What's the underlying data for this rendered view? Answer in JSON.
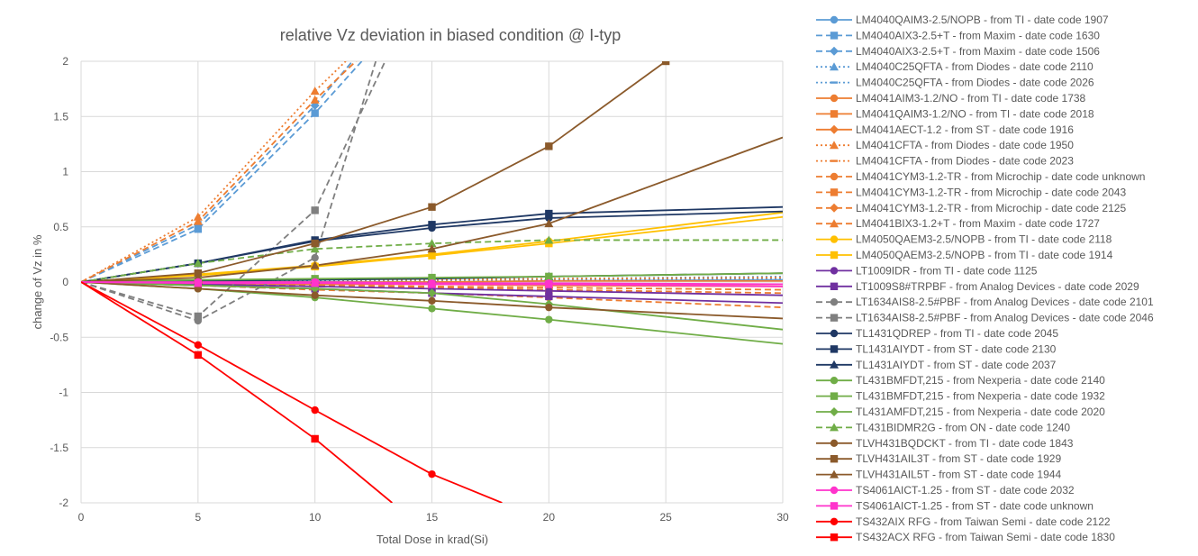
{
  "chart_data": {
    "type": "line",
    "title": "relative Vz deviation in biased condition @ I-typ",
    "xlabel": "Total Dose in krad(Si)",
    "ylabel": "change of Vz in %",
    "xlim": [
      0,
      30
    ],
    "ylim": [
      -2,
      2
    ],
    "x_ticks": [
      "0",
      "5",
      "10",
      "15",
      "20",
      "25",
      "30"
    ],
    "y_ticks": [
      "2",
      "1.5",
      "1",
      "0.5",
      "0",
      "-0.5",
      "-1",
      "-1.5",
      "-2"
    ],
    "grid": true,
    "legend_position": "right",
    "series": [
      {
        "name": "LM4040QAIM3-2.5/NOPB - from TI - date code 1907",
        "color": "#5B9BD5",
        "dash": "solid",
        "marker": "circle",
        "points": [
          [
            0,
            0
          ],
          [
            5,
            0
          ],
          [
            10,
            0
          ],
          [
            15,
            0
          ],
          [
            20,
            0.01
          ],
          [
            30,
            0.02
          ]
        ]
      },
      {
        "name": "LM4040AIX3-2.5+T - from Maxim - date code 1630",
        "color": "#5B9BD5",
        "dash": "dash",
        "marker": "square",
        "points": [
          [
            0,
            0
          ],
          [
            5,
            0.48
          ],
          [
            10,
            1.53
          ],
          [
            12,
            2.0
          ]
        ]
      },
      {
        "name": "LM4040AIX3-2.5+T - from Maxim - date code 1506",
        "color": "#5B9BD5",
        "dash": "dash",
        "marker": "diamond",
        "points": [
          [
            0,
            0
          ],
          [
            5,
            0.52
          ],
          [
            10,
            1.6
          ],
          [
            12,
            2.1
          ]
        ]
      },
      {
        "name": "LM4040C25QFTA - from Diodes - date code 2110",
        "color": "#5B9BD5",
        "dash": "dot",
        "marker": "triangle",
        "points": [
          [
            0,
            0
          ],
          [
            5,
            0.01
          ],
          [
            10,
            0.02
          ],
          [
            15,
            0.02
          ],
          [
            20,
            0.03
          ],
          [
            30,
            0.05
          ]
        ]
      },
      {
        "name": "LM4040C25QFTA - from Diodes - date code 2026",
        "color": "#5B9BD5",
        "dash": "dot",
        "marker": "dash",
        "points": [
          [
            0,
            0
          ],
          [
            5,
            0
          ],
          [
            10,
            0.01
          ],
          [
            15,
            0.01
          ],
          [
            20,
            0.02
          ],
          [
            30,
            0.03
          ]
        ]
      },
      {
        "name": "LM4041AIM3-1.2/NO - from TI - date code 1738",
        "color": "#ED7D31",
        "dash": "solid",
        "marker": "circle",
        "points": [
          [
            0,
            0
          ],
          [
            5,
            -0.01
          ],
          [
            10,
            -0.02
          ],
          [
            15,
            -0.02
          ],
          [
            20,
            -0.03
          ],
          [
            30,
            -0.04
          ]
        ]
      },
      {
        "name": "LM4041QAIM3-1.2/NO - from TI - date code 2018",
        "color": "#ED7D31",
        "dash": "solid",
        "marker": "square",
        "points": [
          [
            0,
            0
          ],
          [
            5,
            -0.01
          ],
          [
            10,
            -0.01
          ],
          [
            15,
            -0.01
          ],
          [
            20,
            -0.02
          ],
          [
            30,
            -0.02
          ]
        ]
      },
      {
        "name": "LM4041AECT-1.2 - from ST - date code 1916",
        "color": "#ED7D31",
        "dash": "solid",
        "marker": "diamond",
        "points": [
          [
            0,
            0
          ],
          [
            5,
            0
          ],
          [
            10,
            0
          ],
          [
            15,
            0
          ],
          [
            20,
            0.01
          ],
          [
            30,
            0.01
          ]
        ]
      },
      {
        "name": "LM4041CFTA - from Diodes - date code 1950",
        "color": "#ED7D31",
        "dash": "dot",
        "marker": "triangle",
        "points": [
          [
            0,
            0
          ],
          [
            5,
            0.59
          ],
          [
            10,
            1.73
          ],
          [
            11.8,
            2.1
          ]
        ]
      },
      {
        "name": "LM4041CFTA - from Diodes - date code 2023",
        "color": "#ED7D31",
        "dash": "dot",
        "marker": "dash",
        "points": [
          [
            0,
            0
          ],
          [
            5,
            0.01
          ],
          [
            10,
            0.02
          ],
          [
            15,
            0.02
          ],
          [
            20,
            0.03
          ],
          [
            30,
            0.04
          ]
        ]
      },
      {
        "name": "LM4041CYM3-1.2-TR - from Microchip - date code unknown",
        "color": "#ED7D31",
        "dash": "dash",
        "marker": "circle",
        "points": [
          [
            0,
            0
          ],
          [
            5,
            -0.03
          ],
          [
            10,
            -0.07
          ],
          [
            15,
            -0.1
          ],
          [
            20,
            -0.14
          ],
          [
            30,
            -0.23
          ]
        ]
      },
      {
        "name": "LM4041CYM3-1.2-TR - from Microchip - date code 2043",
        "color": "#ED7D31",
        "dash": "dash",
        "marker": "square",
        "points": [
          [
            0,
            0
          ],
          [
            5,
            -0.02
          ],
          [
            10,
            -0.04
          ],
          [
            15,
            -0.05
          ],
          [
            20,
            -0.07
          ],
          [
            30,
            -0.1
          ]
        ]
      },
      {
        "name": "LM4041CYM3-1.2-TR - from Microchip - date code 2125",
        "color": "#ED7D31",
        "dash": "dash",
        "marker": "diamond",
        "points": [
          [
            0,
            0
          ],
          [
            5,
            -0.01
          ],
          [
            10,
            -0.03
          ],
          [
            15,
            -0.04
          ],
          [
            20,
            -0.05
          ],
          [
            30,
            -0.07
          ]
        ]
      },
      {
        "name": "LM4041BIX3-1.2+T - from Maxim - date code 1727",
        "color": "#ED7D31",
        "dash": "dash",
        "marker": "triangle",
        "points": [
          [
            0,
            0
          ],
          [
            5,
            0.55
          ],
          [
            10,
            1.65
          ],
          [
            12,
            2.05
          ]
        ]
      },
      {
        "name": "LM4050QAEM3-2.5/NOPB - from TI - date code 2118",
        "color": "#FFC000",
        "dash": "solid",
        "marker": "circle",
        "points": [
          [
            0,
            0
          ],
          [
            5,
            0.07
          ],
          [
            10,
            0.15
          ],
          [
            15,
            0.25
          ],
          [
            20,
            0.37
          ],
          [
            30,
            0.63
          ]
        ]
      },
      {
        "name": "LM4050QAEM3-2.5/NOPB - from TI - date code 1914",
        "color": "#FFC000",
        "dash": "solid",
        "marker": "square",
        "points": [
          [
            0,
            0
          ],
          [
            5,
            0.06
          ],
          [
            10,
            0.14
          ],
          [
            15,
            0.24
          ],
          [
            20,
            0.35
          ],
          [
            30,
            0.59
          ]
        ]
      },
      {
        "name": "LT1009IDR - from TI - date code 1125",
        "color": "#7030A0",
        "dash": "solid",
        "marker": "circle",
        "points": [
          [
            0,
            0
          ],
          [
            5,
            -0.02
          ],
          [
            10,
            -0.04
          ],
          [
            15,
            -0.06
          ],
          [
            20,
            -0.08
          ],
          [
            30,
            -0.12
          ]
        ]
      },
      {
        "name": "LT1009S8#TRPBF - from Analog Devices - date code 2029",
        "color": "#7030A0",
        "dash": "solid",
        "marker": "square",
        "points": [
          [
            0,
            0
          ],
          [
            5,
            -0.03
          ],
          [
            10,
            -0.06
          ],
          [
            15,
            -0.1
          ],
          [
            20,
            -0.13
          ],
          [
            30,
            -0.19
          ]
        ]
      },
      {
        "name": "LT1634AIS8-2.5#PBF - from Analog Devices - date code 2101",
        "color": "#7F7F7F",
        "dash": "dash",
        "marker": "circle",
        "points": [
          [
            0,
            0
          ],
          [
            5,
            -0.35
          ],
          [
            10,
            0.22
          ],
          [
            12.6,
            2.0
          ]
        ]
      },
      {
        "name": "LT1634AIS8-2.5#PBF - from Analog Devices - date code 2046",
        "color": "#7F7F7F",
        "dash": "dash",
        "marker": "square",
        "points": [
          [
            0,
            0
          ],
          [
            5,
            -0.31
          ],
          [
            10,
            0.65
          ],
          [
            13,
            2.0
          ]
        ]
      },
      {
        "name": "TL1431QDREP - from TI - date code 2045",
        "color": "#1F3864",
        "dash": "solid",
        "marker": "circle",
        "points": [
          [
            0,
            0
          ],
          [
            5,
            0.17
          ],
          [
            10,
            0.37
          ],
          [
            15,
            0.49
          ],
          [
            20,
            0.58
          ],
          [
            30,
            0.64
          ]
        ]
      },
      {
        "name": "TL1431AIYDT - from ST - date code 2130",
        "color": "#1F3864",
        "dash": "solid",
        "marker": "square",
        "points": [
          [
            0,
            0
          ],
          [
            5,
            0.17
          ],
          [
            10,
            0.38
          ],
          [
            15,
            0.52
          ],
          [
            20,
            0.62
          ],
          [
            30,
            0.68
          ]
        ]
      },
      {
        "name": "TL1431AIYDT - from ST - date code 2037",
        "color": "#1F3864",
        "dash": "solid",
        "marker": "triangle",
        "points": [
          [
            0,
            0
          ],
          [
            5,
            0.01
          ],
          [
            10,
            0.02
          ],
          [
            15,
            0.03
          ],
          [
            20,
            0.05
          ],
          [
            30,
            0.08
          ]
        ]
      },
      {
        "name": "TL431BMFDT,215 - from Nexperia - date code 2140",
        "color": "#70AD47",
        "dash": "solid",
        "marker": "circle",
        "points": [
          [
            0,
            0
          ],
          [
            5,
            -0.06
          ],
          [
            10,
            -0.14
          ],
          [
            15,
            -0.24
          ],
          [
            20,
            -0.34
          ],
          [
            30,
            -0.56
          ]
        ]
      },
      {
        "name": "TL431BMFDT,215 - from Nexperia - date code 1932",
        "color": "#70AD47",
        "dash": "solid",
        "marker": "square",
        "points": [
          [
            0,
            0
          ],
          [
            5,
            0.02
          ],
          [
            10,
            0.03
          ],
          [
            15,
            0.04
          ],
          [
            20,
            0.05
          ],
          [
            30,
            0.08
          ]
        ]
      },
      {
        "name": "TL431AMFDT,215 - from Nexperia - date code 2020",
        "color": "#70AD47",
        "dash": "solid",
        "marker": "diamond",
        "points": [
          [
            0,
            0
          ],
          [
            5,
            -0.03
          ],
          [
            10,
            -0.06
          ],
          [
            15,
            -0.1
          ],
          [
            20,
            -0.2
          ],
          [
            30,
            -0.43
          ]
        ]
      },
      {
        "name": "TL431BIDMR2G - from ON - date code 1240",
        "color": "#70AD47",
        "dash": "dash",
        "marker": "triangle",
        "points": [
          [
            0,
            0
          ],
          [
            5,
            0.17
          ],
          [
            10,
            0.3
          ],
          [
            15,
            0.35
          ],
          [
            20,
            0.38
          ],
          [
            30,
            0.38
          ]
        ]
      },
      {
        "name": "TLVH431BQDCKT - from TI - date code 1843",
        "color": "#8B5A2B",
        "dash": "solid",
        "marker": "circle",
        "points": [
          [
            0,
            0
          ],
          [
            5,
            -0.06
          ],
          [
            10,
            -0.12
          ],
          [
            15,
            -0.17
          ],
          [
            20,
            -0.23
          ],
          [
            30,
            -0.33
          ]
        ]
      },
      {
        "name": "TLVH431AIL3T - from ST - date code 1929",
        "color": "#8B5A2B",
        "dash": "solid",
        "marker": "square",
        "points": [
          [
            0,
            0
          ],
          [
            5,
            0.08
          ],
          [
            10,
            0.35
          ],
          [
            15,
            0.68
          ],
          [
            20,
            1.23
          ],
          [
            25,
            2.0
          ]
        ]
      },
      {
        "name": "TLVH431AIL5T - from ST - date code 1944",
        "color": "#8B5A2B",
        "dash": "solid",
        "marker": "triangle",
        "points": [
          [
            0,
            0
          ],
          [
            5,
            0.04
          ],
          [
            10,
            0.15
          ],
          [
            15,
            0.3
          ],
          [
            20,
            0.53
          ],
          [
            30,
            1.31
          ]
        ]
      },
      {
        "name": "TS4061AICT-1.25 - from ST - date code 2032",
        "color": "#FF33CC",
        "dash": "solid",
        "marker": "circle",
        "points": [
          [
            0,
            0
          ],
          [
            5,
            0
          ],
          [
            10,
            0
          ],
          [
            15,
            -0.01
          ],
          [
            20,
            -0.01
          ],
          [
            30,
            -0.02
          ]
        ]
      },
      {
        "name": "TS4061AICT-1.25 - from ST - date code unknown",
        "color": "#FF33CC",
        "dash": "solid",
        "marker": "square",
        "points": [
          [
            0,
            0
          ],
          [
            5,
            -0.01
          ],
          [
            10,
            -0.01
          ],
          [
            15,
            -0.02
          ],
          [
            20,
            -0.02
          ],
          [
            30,
            -0.04
          ]
        ]
      },
      {
        "name": "TS432AIX RFG - from Taiwan Semi - date code 2122",
        "color": "#FF0000",
        "dash": "solid",
        "marker": "circle",
        "points": [
          [
            0,
            0
          ],
          [
            5,
            -0.57
          ],
          [
            10,
            -1.16
          ],
          [
            15,
            -1.74
          ],
          [
            18,
            -2.0
          ]
        ]
      },
      {
        "name": "TS432ACX RFG - from Taiwan Semi - date code 1830",
        "color": "#FF0000",
        "dash": "solid",
        "marker": "square",
        "points": [
          [
            0,
            0
          ],
          [
            5,
            -0.66
          ],
          [
            10,
            -1.42
          ],
          [
            13.3,
            -2.0
          ]
        ]
      }
    ]
  }
}
